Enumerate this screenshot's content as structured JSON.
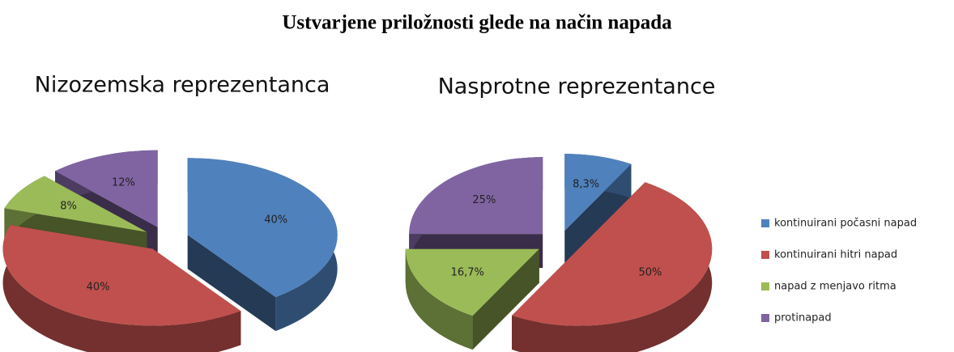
{
  "title": "Ustvarjene priložnosti glede na način napada",
  "legend": {
    "categories": [
      "kontinuirani počasni napad",
      "kontinuirani hitri napad",
      "napad z menjavo ritma",
      "protinapad"
    ],
    "colors": [
      "#4f81bd",
      "#c0504d",
      "#9bbb59",
      "#8064a2"
    ]
  },
  "chart_data": [
    {
      "type": "pie",
      "title": "Nizozemska reprezentanca",
      "values": [
        40,
        40,
        8,
        12
      ],
      "value_labels": [
        "40%",
        "40%",
        "8%",
        "12%"
      ]
    },
    {
      "type": "pie",
      "title": "Nasprotne reprezentance",
      "values": [
        8.3,
        50,
        16.7,
        25
      ],
      "value_labels": [
        "8,3%",
        "50%",
        "16,7%",
        "25%"
      ]
    }
  ]
}
